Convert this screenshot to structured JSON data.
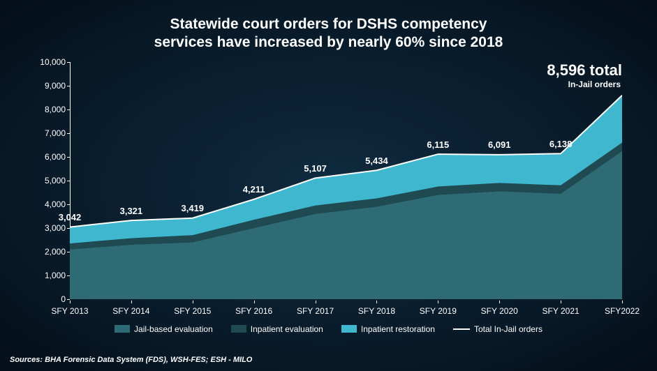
{
  "title_line1": "Statewide court orders for DSHS competency",
  "title_line2": "services have increased by nearly 60% since 2018",
  "title_fontsize": 21,
  "chart": {
    "type": "stacked-area",
    "categories": [
      "SFY 2013",
      "SFY 2014",
      "SFY 2015",
      "SFY 2016",
      "SFY 2017",
      "SFY 2018",
      "SFY 2019",
      "SFY 2020",
      "SFY 2021",
      "SFY2022"
    ],
    "series": [
      {
        "name": "Jail-based evaluation",
        "color": "#2e6b74",
        "values": [
          2100,
          2300,
          2400,
          3000,
          3600,
          3900,
          4400,
          4550,
          4450,
          6250
        ]
      },
      {
        "name": "Inpatient evaluation",
        "color": "#1f4a52",
        "values": [
          250,
          270,
          300,
          350,
          350,
          350,
          350,
          350,
          350,
          350
        ]
      },
      {
        "name": "Inpatient restoration",
        "color": "#3fb8cf",
        "values": [
          692,
          751,
          719,
          861,
          1157,
          1184,
          1365,
          1191,
          1338,
          1996
        ]
      }
    ],
    "totals": [
      3042,
      3321,
      3419,
      4211,
      5107,
      5434,
      6115,
      6091,
      6138,
      8596
    ],
    "total_line": {
      "name": "Total In-Jail orders",
      "color": "#ffffff",
      "width": 2
    },
    "ylim": [
      0,
      10000
    ],
    "ytick_step": 1000,
    "ytick_labels": [
      "0",
      "1,000",
      "2,000",
      "3,000",
      "4,000",
      "5,000",
      "6,000",
      "7,000",
      "8,000",
      "9,000",
      "10,000"
    ],
    "label_fontsize": 12,
    "data_label_fontsize": 13,
    "background": "transparent",
    "axis_color": "#ffffff",
    "data_labels": [
      "3,042",
      "3,321",
      "3,419",
      "4,211",
      "5,107",
      "5,434",
      "6,115",
      "6,091",
      "6,138",
      ""
    ],
    "callout": {
      "total": "8,596 total",
      "sub": "In-Jail orders",
      "total_fontsize": 22,
      "sub_fontsize": 12
    },
    "callout_year_label": "6,138"
  },
  "legend": {
    "items": [
      {
        "label": "Jail-based evaluation",
        "color": "#2e6b74",
        "type": "box"
      },
      {
        "label": "Inpatient evaluation",
        "color": "#1f4a52",
        "type": "box"
      },
      {
        "label": "Inpatient restoration",
        "color": "#3fb8cf",
        "type": "box"
      },
      {
        "label": "Total In-Jail orders",
        "color": "#ffffff",
        "type": "line"
      }
    ]
  },
  "sources": "Sources: BHA Forensic Data System (FDS), WSH-FES; ESH - MILO"
}
